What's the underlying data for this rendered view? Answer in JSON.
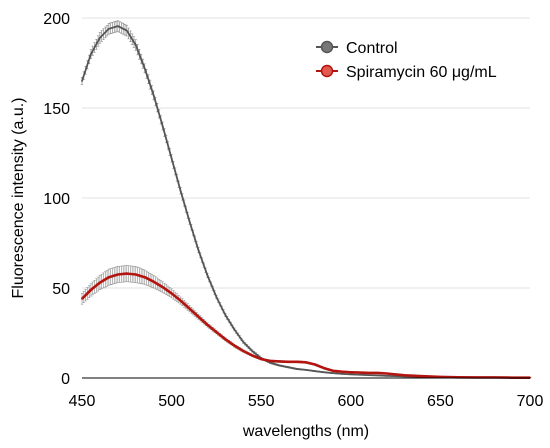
{
  "chart_data": {
    "type": "line",
    "title": "",
    "xlabel": "wavelengths (nm)",
    "ylabel": "Fluorescence intensity (a.u.)",
    "xlim": [
      450,
      700
    ],
    "ylim": [
      0,
      200
    ],
    "xticks": [
      450,
      500,
      550,
      600,
      650,
      700
    ],
    "yticks": [
      0,
      50,
      100,
      150,
      200
    ],
    "grid": "horizontal",
    "legend": "top-right",
    "series": [
      {
        "name": "Control",
        "color": "#555555",
        "error_color": "#777777",
        "x": [
          450,
          455,
          460,
          465,
          470,
          475,
          480,
          485,
          490,
          495,
          500,
          505,
          510,
          515,
          520,
          525,
          530,
          535,
          540,
          545,
          550,
          555,
          560,
          565,
          570,
          575,
          580,
          585,
          590,
          595,
          600,
          610,
          620,
          630,
          640,
          650,
          660,
          670,
          680,
          690,
          700
        ],
        "y": [
          165,
          180,
          189,
          194,
          195.5,
          193,
          185,
          172,
          157,
          140,
          122,
          104,
          87,
          71,
          57,
          45,
          35,
          27,
          20,
          15,
          11,
          8.5,
          7,
          6,
          5,
          4.5,
          3.8,
          3.2,
          2.7,
          2.3,
          2,
          1.6,
          1.2,
          0.9,
          0.7,
          0.5,
          0.4,
          0.3,
          0.3,
          0.2,
          0.2
        ],
        "err": [
          2,
          2.5,
          3,
          3,
          3,
          3,
          3,
          2.5,
          2.5,
          2.2,
          2,
          1.8,
          1.6,
          1.4,
          1.2,
          1,
          0.9,
          0.8,
          0.7,
          0.6,
          0.5,
          0.5,
          0.4,
          0.4,
          0.4,
          0.3,
          0.3,
          0.3,
          0.3,
          0.2,
          0.2,
          0.2,
          0.2,
          0.2,
          0.2,
          0.2,
          0.2,
          0.2,
          0.2,
          0.2,
          0.2
        ]
      },
      {
        "name": "Spiramycin 60 μg/mL",
        "color": "#b3140f",
        "error_color": "#888888",
        "x": [
          450,
          455,
          460,
          465,
          470,
          475,
          480,
          485,
          490,
          495,
          500,
          505,
          510,
          515,
          520,
          525,
          530,
          535,
          540,
          545,
          550,
          555,
          560,
          565,
          570,
          575,
          580,
          585,
          590,
          595,
          600,
          605,
          610,
          615,
          620,
          630,
          640,
          650,
          660,
          670,
          680,
          690,
          700
        ],
        "y": [
          44,
          49,
          53,
          56,
          57.5,
          58,
          57.5,
          56,
          53.5,
          50.5,
          47,
          43,
          38.5,
          34,
          29.5,
          25.5,
          21.5,
          18,
          15,
          12.5,
          10.5,
          9.5,
          9.2,
          9,
          9,
          8.7,
          7.5,
          5.5,
          4,
          3.5,
          3.2,
          3,
          2.8,
          2.8,
          2.5,
          1.5,
          1,
          0.6,
          0.4,
          0.3,
          0.3,
          0.2,
          0.2
        ],
        "err": [
          3,
          3.5,
          4,
          4.5,
          4.5,
          4.5,
          4.5,
          4,
          3.5,
          3,
          2.5,
          2,
          1.8,
          1.5,
          1.2,
          1,
          0.9,
          0.8,
          0.7,
          0.6,
          0.5,
          0.5,
          0.5,
          0.5,
          0.5,
          0.5,
          0.4,
          0.4,
          0.3,
          0.3,
          0.3,
          0.3,
          0.3,
          0.3,
          0.3,
          0.2,
          0.2,
          0.2,
          0.2,
          0.2,
          0.2,
          0.2,
          0.2
        ]
      }
    ]
  }
}
